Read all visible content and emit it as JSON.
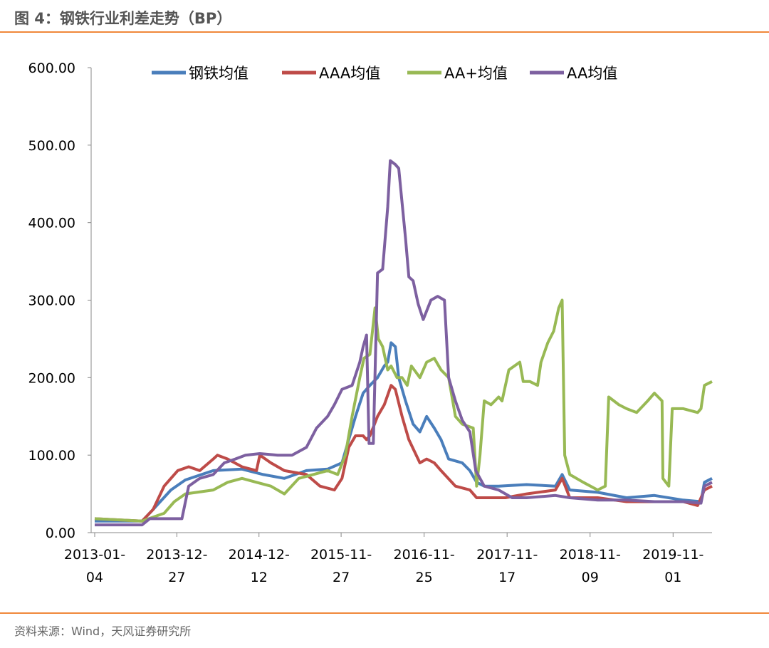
{
  "header": {
    "title": "图 4：钢铁行业利差走势（BP）"
  },
  "footer": {
    "source": "资料来源：Wind，天风证券研究所"
  },
  "chart_data": {
    "type": "line",
    "title": "图 4：钢铁行业利差走势（BP）",
    "xlabel": "",
    "ylabel": "BP",
    "x_unit": "decimal year",
    "xlim": [
      2013.01,
      2020.3
    ],
    "ylim": [
      0,
      600
    ],
    "y_ticks": [
      0,
      100,
      200,
      300,
      400,
      500,
      600
    ],
    "y_tick_labels": [
      "0.00",
      "100.00",
      "200.00",
      "300.00",
      "400.00",
      "500.00",
      "600.00"
    ],
    "x_ticks": [
      {
        "x": 2013.01,
        "label": "2013-01-04"
      },
      {
        "x": 2013.98,
        "label": "2013-12-27"
      },
      {
        "x": 2014.95,
        "label": "2014-12-12"
      },
      {
        "x": 2015.92,
        "label": "2015-11-27"
      },
      {
        "x": 2016.9,
        "label": "2016-11-25"
      },
      {
        "x": 2017.88,
        "label": "2017-11-17"
      },
      {
        "x": 2018.86,
        "label": "2018-11-09"
      },
      {
        "x": 2019.84,
        "label": "2019-11-01"
      }
    ],
    "grid": false,
    "legend_position": "top",
    "series": [
      {
        "name": "钢铁均值",
        "color": "#4a7ebb",
        "x": [
          2013.01,
          2013.57,
          2013.7,
          2013.91,
          2014.08,
          2014.41,
          2014.75,
          2015.0,
          2015.25,
          2015.51,
          2015.76,
          2015.93,
          2016.01,
          2016.09,
          2016.18,
          2016.26,
          2016.35,
          2016.43,
          2016.47,
          2016.51,
          2016.56,
          2016.6,
          2016.68,
          2016.77,
          2016.85,
          2016.93,
          2017.02,
          2017.1,
          2017.19,
          2017.35,
          2017.44,
          2017.52,
          2017.61,
          2017.78,
          2018.11,
          2018.45,
          2018.53,
          2018.62,
          2018.95,
          2019.29,
          2019.62,
          2019.96,
          2020.17,
          2020.21,
          2020.3
        ],
        "y": [
          15,
          15,
          30,
          55,
          68,
          80,
          82,
          75,
          70,
          80,
          82,
          90,
          120,
          150,
          180,
          190,
          200,
          215,
          220,
          245,
          240,
          200,
          170,
          140,
          130,
          150,
          135,
          120,
          95,
          90,
          80,
          65,
          60,
          60,
          62,
          60,
          75,
          55,
          52,
          45,
          48,
          42,
          40,
          65,
          70
        ]
      },
      {
        "name": "AAA均值",
        "color": "#be4b48",
        "x": [
          2013.01,
          2013.57,
          2013.7,
          2013.83,
          2013.99,
          2014.12,
          2014.25,
          2014.41,
          2014.46,
          2014.58,
          2014.75,
          2014.92,
          2014.96,
          2015.09,
          2015.25,
          2015.51,
          2015.67,
          2015.84,
          2015.93,
          2016.01,
          2016.09,
          2016.18,
          2016.22,
          2016.26,
          2016.35,
          2016.43,
          2016.51,
          2016.56,
          2016.64,
          2016.72,
          2016.85,
          2016.93,
          2017.02,
          2017.1,
          2017.27,
          2017.44,
          2017.52,
          2017.69,
          2017.86,
          2018.11,
          2018.45,
          2018.53,
          2018.62,
          2018.95,
          2019.29,
          2019.62,
          2019.96,
          2020.13,
          2020.21,
          2020.3
        ],
        "y": [
          18,
          15,
          30,
          60,
          80,
          85,
          80,
          95,
          100,
          95,
          85,
          80,
          100,
          90,
          80,
          75,
          60,
          55,
          70,
          110,
          125,
          125,
          120,
          125,
          150,
          165,
          190,
          185,
          150,
          120,
          90,
          95,
          90,
          80,
          60,
          55,
          45,
          45,
          45,
          50,
          55,
          70,
          45,
          45,
          40,
          40,
          40,
          35,
          55,
          60
        ]
      },
      {
        "name": "AA+均值",
        "color": "#98b954",
        "x": [
          2013.01,
          2013.57,
          2013.83,
          2013.95,
          2014.08,
          2014.41,
          2014.58,
          2014.75,
          2014.92,
          2015.09,
          2015.25,
          2015.42,
          2015.59,
          2015.76,
          2015.88,
          2015.97,
          2016.05,
          2016.14,
          2016.19,
          2016.26,
          2016.32,
          2016.36,
          2016.41,
          2016.47,
          2016.51,
          2016.58,
          2016.64,
          2016.7,
          2016.75,
          2016.85,
          2016.93,
          2017.02,
          2017.1,
          2017.19,
          2017.27,
          2017.35,
          2017.48,
          2017.52,
          2017.56,
          2017.61,
          2017.69,
          2017.78,
          2017.82,
          2017.9,
          2018.03,
          2018.07,
          2018.15,
          2018.24,
          2018.28,
          2018.36,
          2018.43,
          2018.49,
          2018.53,
          2018.56,
          2018.62,
          2018.78,
          2018.95,
          2019.04,
          2019.08,
          2019.2,
          2019.29,
          2019.41,
          2019.54,
          2019.62,
          2019.71,
          2019.72,
          2019.79,
          2019.83,
          2019.96,
          2020.13,
          2020.17,
          2020.21,
          2020.3
        ],
        "y": [
          18,
          15,
          25,
          40,
          50,
          55,
          65,
          70,
          65,
          60,
          50,
          70,
          75,
          80,
          75,
          100,
          150,
          200,
          225,
          230,
          290,
          250,
          240,
          210,
          215,
          200,
          200,
          190,
          215,
          200,
          220,
          225,
          210,
          200,
          150,
          140,
          135,
          60,
          100,
          170,
          165,
          175,
          170,
          210,
          220,
          195,
          195,
          190,
          220,
          245,
          260,
          290,
          300,
          100,
          75,
          65,
          55,
          60,
          175,
          165,
          160,
          155,
          170,
          180,
          170,
          70,
          60,
          160,
          160,
          155,
          160,
          190,
          195
        ]
      },
      {
        "name": "AA均值",
        "color": "#7d60a0",
        "x": [
          2013.01,
          2013.57,
          2013.66,
          2014.04,
          2014.12,
          2014.25,
          2014.41,
          2014.54,
          2014.67,
          2014.79,
          2014.96,
          2015.17,
          2015.34,
          2015.51,
          2015.63,
          2015.76,
          2015.84,
          2015.93,
          2016.05,
          2016.14,
          2016.18,
          2016.22,
          2016.25,
          2016.3,
          2016.35,
          2016.41,
          2016.47,
          2016.5,
          2016.56,
          2016.6,
          2016.68,
          2016.72,
          2016.77,
          2016.83,
          2016.89,
          2016.98,
          2017.06,
          2017.14,
          2017.19,
          2017.27,
          2017.35,
          2017.44,
          2017.51,
          2017.61,
          2017.78,
          2017.94,
          2018.11,
          2018.45,
          2018.62,
          2018.95,
          2019.29,
          2019.62,
          2019.96,
          2020.17,
          2020.21,
          2020.3
        ],
        "y": [
          10,
          10,
          18,
          18,
          60,
          70,
          75,
          90,
          95,
          100,
          102,
          100,
          100,
          110,
          135,
          150,
          165,
          185,
          190,
          220,
          240,
          255,
          115,
          115,
          335,
          340,
          420,
          480,
          475,
          470,
          380,
          330,
          325,
          295,
          275,
          300,
          305,
          300,
          200,
          170,
          145,
          130,
          80,
          60,
          55,
          45,
          45,
          48,
          45,
          42,
          42,
          40,
          40,
          38,
          60,
          65
        ]
      }
    ]
  }
}
